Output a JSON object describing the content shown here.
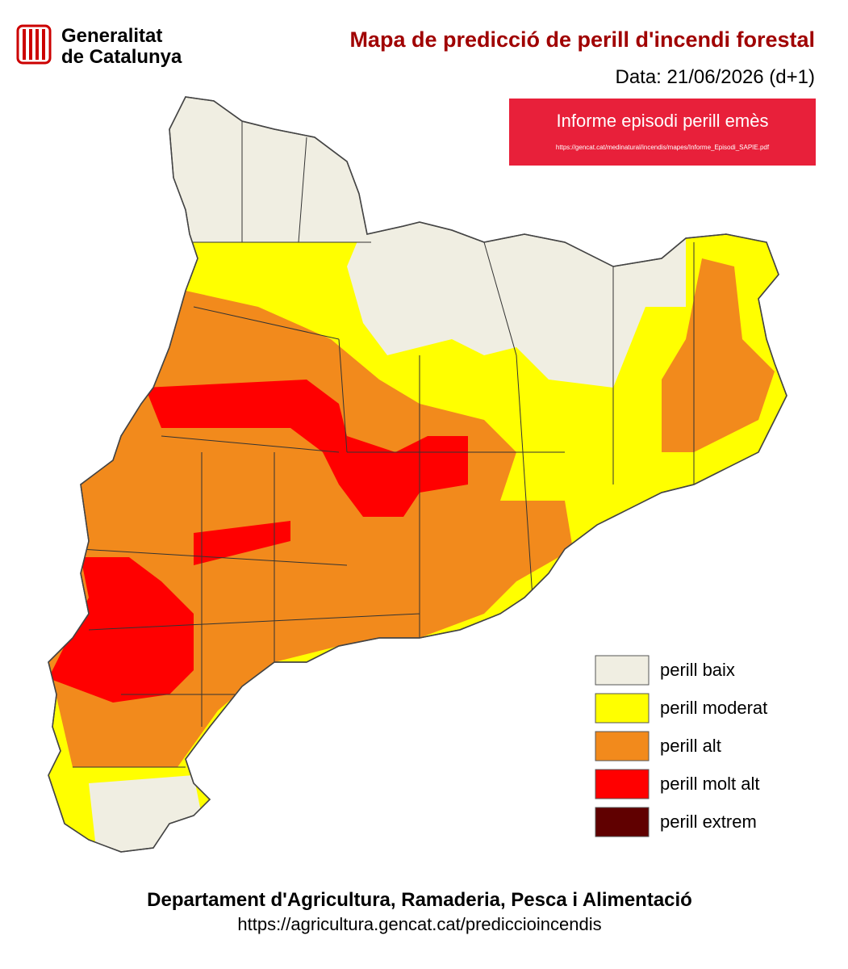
{
  "header": {
    "org_line1": "Generalitat",
    "org_line2": "de Catalunya",
    "title": "Mapa de predicció de perill d'incendi forestal",
    "date": "Data: 21/06/2026 (d+1)"
  },
  "banner": {
    "title": "Informe episodi perill emès",
    "url": "https://gencat.cat/medinatural/incendis/mapes/Informe_Episodi_SAPIE.pdf"
  },
  "legend": [
    {
      "label": "perill baix",
      "color": "#f0eee2"
    },
    {
      "label": "perill moderat",
      "color": "#ffff00"
    },
    {
      "label": "perill alt",
      "color": "#f28a1c"
    },
    {
      "label": "perill molt alt",
      "color": "#ff0000"
    },
    {
      "label": "perill extrem",
      "color": "#600000"
    }
  ],
  "footer": {
    "department": "Departament d'Agricultura, Ramaderia, Pesca i Alimentació",
    "url": "https://agricultura.gencat.cat/prediccioincendis"
  }
}
